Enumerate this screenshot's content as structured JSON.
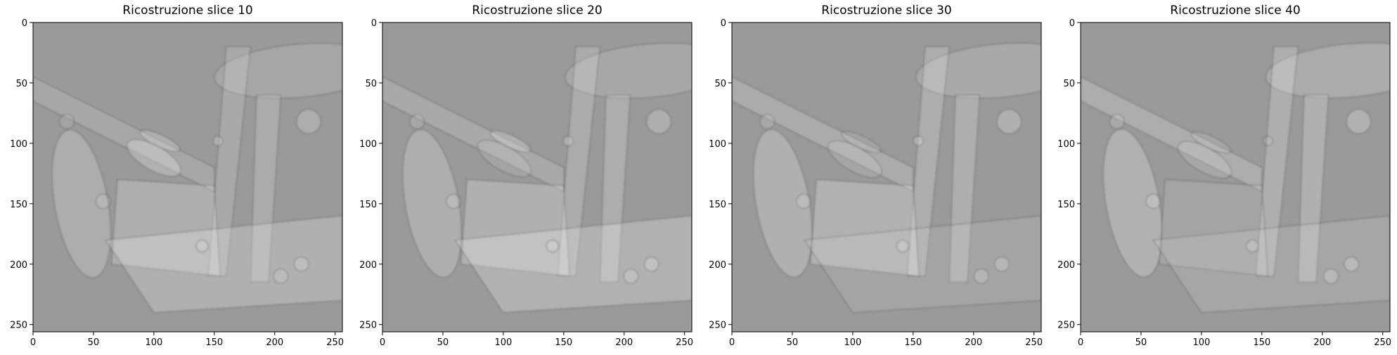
{
  "figure": {
    "panels": [
      {
        "title": "Ricostruzione slice 10",
        "slice": 10
      },
      {
        "title": "Ricostruzione slice 20",
        "slice": 20
      },
      {
        "title": "Ricostruzione slice 30",
        "slice": 30
      },
      {
        "title": "Ricostruzione slice 40",
        "slice": 40
      }
    ],
    "x_ticks": [
      "0",
      "50",
      "100",
      "150",
      "200",
      "250"
    ],
    "y_ticks": [
      "0",
      "50",
      "100",
      "150",
      "200",
      "250"
    ],
    "image_extent": [
      0,
      256
    ],
    "colormap": "gray",
    "background_color": "#9a9a9a"
  }
}
